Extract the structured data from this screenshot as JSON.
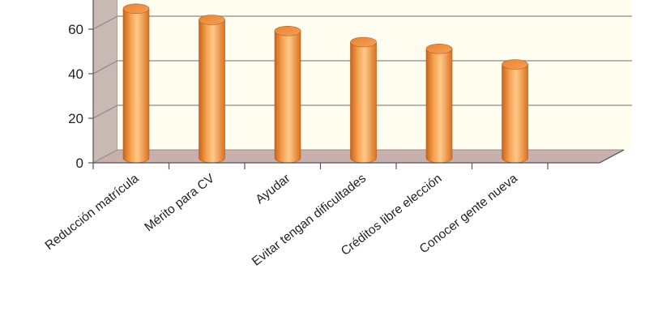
{
  "chart_data": {
    "type": "bar",
    "title": "",
    "xlabel": "",
    "ylabel": "",
    "categories": [
      "Reducción matrícula",
      "Mérito para CV",
      "Ayudar",
      "Evitar tengan dificultades",
      "Créditos libre elección",
      "Conocer gente nueva"
    ],
    "values": [
      67,
      62,
      57,
      52,
      49,
      42
    ],
    "y_ticks": [
      "0",
      "20",
      "40",
      "60"
    ],
    "ylim": [
      0,
      72
    ],
    "grid": true,
    "style": "3d-cylinder",
    "colors": {
      "bar": "#f59a45",
      "bar_dark": "#c9651c",
      "bar_light": "#ffd29a",
      "floor": "#c7b0ae",
      "wall": "#fffdf0",
      "side_wall": "#c9b9b4",
      "grid": "#8a8a8a"
    }
  }
}
